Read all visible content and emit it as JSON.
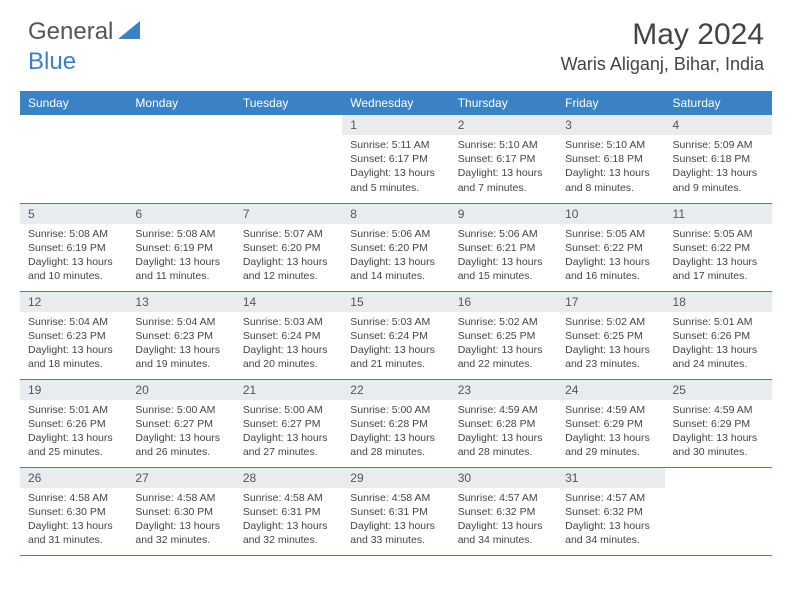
{
  "brand": {
    "part1": "General",
    "part2": "Blue"
  },
  "title": "May 2024",
  "location": "Waris Aliganj, Bihar, India",
  "colors": {
    "header_bg": "#3b82c4",
    "header_text": "#ffffff",
    "daynum_bg": "#e9ecef",
    "text": "#444444",
    "border": "#3b82c4"
  },
  "weekdays": [
    "Sunday",
    "Monday",
    "Tuesday",
    "Wednesday",
    "Thursday",
    "Friday",
    "Saturday"
  ],
  "weeks": [
    [
      null,
      null,
      null,
      {
        "n": "1",
        "sr": "5:11 AM",
        "ss": "6:17 PM",
        "dl": "13 hours and 5 minutes."
      },
      {
        "n": "2",
        "sr": "5:10 AM",
        "ss": "6:17 PM",
        "dl": "13 hours and 7 minutes."
      },
      {
        "n": "3",
        "sr": "5:10 AM",
        "ss": "6:18 PM",
        "dl": "13 hours and 8 minutes."
      },
      {
        "n": "4",
        "sr": "5:09 AM",
        "ss": "6:18 PM",
        "dl": "13 hours and 9 minutes."
      }
    ],
    [
      {
        "n": "5",
        "sr": "5:08 AM",
        "ss": "6:19 PM",
        "dl": "13 hours and 10 minutes."
      },
      {
        "n": "6",
        "sr": "5:08 AM",
        "ss": "6:19 PM",
        "dl": "13 hours and 11 minutes."
      },
      {
        "n": "7",
        "sr": "5:07 AM",
        "ss": "6:20 PM",
        "dl": "13 hours and 12 minutes."
      },
      {
        "n": "8",
        "sr": "5:06 AM",
        "ss": "6:20 PM",
        "dl": "13 hours and 14 minutes."
      },
      {
        "n": "9",
        "sr": "5:06 AM",
        "ss": "6:21 PM",
        "dl": "13 hours and 15 minutes."
      },
      {
        "n": "10",
        "sr": "5:05 AM",
        "ss": "6:22 PM",
        "dl": "13 hours and 16 minutes."
      },
      {
        "n": "11",
        "sr": "5:05 AM",
        "ss": "6:22 PM",
        "dl": "13 hours and 17 minutes."
      }
    ],
    [
      {
        "n": "12",
        "sr": "5:04 AM",
        "ss": "6:23 PM",
        "dl": "13 hours and 18 minutes."
      },
      {
        "n": "13",
        "sr": "5:04 AM",
        "ss": "6:23 PM",
        "dl": "13 hours and 19 minutes."
      },
      {
        "n": "14",
        "sr": "5:03 AM",
        "ss": "6:24 PM",
        "dl": "13 hours and 20 minutes."
      },
      {
        "n": "15",
        "sr": "5:03 AM",
        "ss": "6:24 PM",
        "dl": "13 hours and 21 minutes."
      },
      {
        "n": "16",
        "sr": "5:02 AM",
        "ss": "6:25 PM",
        "dl": "13 hours and 22 minutes."
      },
      {
        "n": "17",
        "sr": "5:02 AM",
        "ss": "6:25 PM",
        "dl": "13 hours and 23 minutes."
      },
      {
        "n": "18",
        "sr": "5:01 AM",
        "ss": "6:26 PM",
        "dl": "13 hours and 24 minutes."
      }
    ],
    [
      {
        "n": "19",
        "sr": "5:01 AM",
        "ss": "6:26 PM",
        "dl": "13 hours and 25 minutes."
      },
      {
        "n": "20",
        "sr": "5:00 AM",
        "ss": "6:27 PM",
        "dl": "13 hours and 26 minutes."
      },
      {
        "n": "21",
        "sr": "5:00 AM",
        "ss": "6:27 PM",
        "dl": "13 hours and 27 minutes."
      },
      {
        "n": "22",
        "sr": "5:00 AM",
        "ss": "6:28 PM",
        "dl": "13 hours and 28 minutes."
      },
      {
        "n": "23",
        "sr": "4:59 AM",
        "ss": "6:28 PM",
        "dl": "13 hours and 28 minutes."
      },
      {
        "n": "24",
        "sr": "4:59 AM",
        "ss": "6:29 PM",
        "dl": "13 hours and 29 minutes."
      },
      {
        "n": "25",
        "sr": "4:59 AM",
        "ss": "6:29 PM",
        "dl": "13 hours and 30 minutes."
      }
    ],
    [
      {
        "n": "26",
        "sr": "4:58 AM",
        "ss": "6:30 PM",
        "dl": "13 hours and 31 minutes."
      },
      {
        "n": "27",
        "sr": "4:58 AM",
        "ss": "6:30 PM",
        "dl": "13 hours and 32 minutes."
      },
      {
        "n": "28",
        "sr": "4:58 AM",
        "ss": "6:31 PM",
        "dl": "13 hours and 32 minutes."
      },
      {
        "n": "29",
        "sr": "4:58 AM",
        "ss": "6:31 PM",
        "dl": "13 hours and 33 minutes."
      },
      {
        "n": "30",
        "sr": "4:57 AM",
        "ss": "6:32 PM",
        "dl": "13 hours and 34 minutes."
      },
      {
        "n": "31",
        "sr": "4:57 AM",
        "ss": "6:32 PM",
        "dl": "13 hours and 34 minutes."
      },
      null
    ]
  ],
  "labels": {
    "sunrise": "Sunrise: ",
    "sunset": "Sunset: ",
    "daylight": "Daylight: "
  }
}
